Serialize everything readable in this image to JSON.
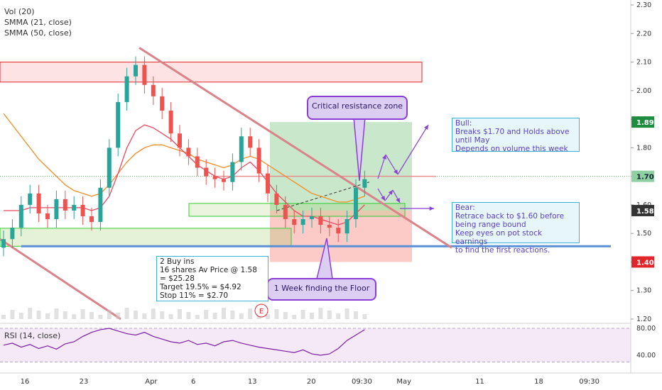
{
  "chart_data": {
    "type": "candlestick",
    "indicators": [
      "Vol (20)",
      "SMMA (21, close)",
      "SMMA (50, close)"
    ],
    "ylim": [
      1.2,
      2.3
    ],
    "y_ticks": [
      "2.30",
      "2.20",
      "2.10",
      "2.00",
      "1.90",
      "1.80",
      "1.70",
      "1.60",
      "1.50",
      "1.40",
      "1.30",
      "1.20"
    ],
    "price_badges": [
      {
        "label": "1.89",
        "value": 1.89,
        "color": "#1e8e3e"
      },
      {
        "label": "1.70",
        "value": 1.7,
        "color": "#8fcfa2"
      },
      {
        "label": "1.58",
        "value": 1.58,
        "color": "#333333"
      },
      {
        "label": "1.40",
        "value": 1.4,
        "color": "#e0262b"
      }
    ],
    "x_ticks": [
      {
        "label": "16",
        "day": 1
      },
      {
        "label": "23",
        "day": 8
      },
      {
        "label": "Apr",
        "day": 16
      },
      {
        "label": "6",
        "day": 21
      },
      {
        "label": "13",
        "day": 28
      },
      {
        "label": "20",
        "day": 35
      },
      {
        "label": "09:30",
        "day": 41
      },
      {
        "label": "May",
        "day": 46
      },
      {
        "label": "11",
        "day": 55
      },
      {
        "label": "18",
        "day": 62
      },
      {
        "label": "09:30",
        "day": 68
      }
    ],
    "close": [
      1.48,
      1.52,
      1.6,
      1.64,
      1.57,
      1.55,
      1.62,
      1.58,
      1.6,
      1.56,
      1.54,
      1.66,
      1.8,
      1.96,
      2.05,
      2.09,
      2.02,
      1.98,
      1.93,
      1.85,
      1.8,
      1.77,
      1.73,
      1.7,
      1.69,
      1.68,
      1.75,
      1.84,
      1.8,
      1.71,
      1.64,
      1.6,
      1.55,
      1.53,
      1.55,
      1.56,
      1.53,
      1.52,
      1.5,
      1.55,
      1.66,
      1.69
    ],
    "smma21": [
      1.58,
      1.58,
      1.58,
      1.59,
      1.59,
      1.59,
      1.59,
      1.59,
      1.59,
      1.59,
      1.58,
      1.59,
      1.63,
      1.71,
      1.8,
      1.86,
      1.88,
      1.87,
      1.85,
      1.83,
      1.8,
      1.77,
      1.74,
      1.72,
      1.7,
      1.69,
      1.7,
      1.73,
      1.75,
      1.72,
      1.68,
      1.64,
      1.61,
      1.58,
      1.56,
      1.56,
      1.55,
      1.54,
      1.53,
      1.54,
      1.57,
      1.6
    ],
    "smma50": [
      1.92,
      1.88,
      1.84,
      1.8,
      1.76,
      1.73,
      1.7,
      1.67,
      1.65,
      1.64,
      1.63,
      1.64,
      1.67,
      1.71,
      1.75,
      1.78,
      1.8,
      1.81,
      1.81,
      1.8,
      1.79,
      1.78,
      1.76,
      1.75,
      1.74,
      1.73,
      1.74,
      1.76,
      1.77,
      1.76,
      1.74,
      1.72,
      1.7,
      1.68,
      1.66,
      1.64,
      1.63,
      1.62,
      1.61,
      1.61,
      1.62,
      1.63
    ],
    "rsi_label": "RSI (14, close)",
    "rsi_ticks": [
      "80.00",
      "40.00"
    ],
    "rsi": [
      55,
      58,
      52,
      56,
      50,
      54,
      49,
      57,
      60,
      68,
      74,
      78,
      80,
      76,
      72,
      70,
      74,
      68,
      64,
      60,
      58,
      62,
      56,
      58,
      54,
      60,
      62,
      58,
      55,
      52,
      50,
      48,
      46,
      44,
      48,
      42,
      40,
      42,
      50,
      62,
      70,
      78
    ],
    "rsi_ylim": [
      20,
      90
    ],
    "zones": {
      "resistance_top": [
        2.1,
        2.03
      ],
      "profit_zone": [
        1.89,
        1.58
      ],
      "loss_zone": [
        1.58,
        1.4
      ],
      "support_line": 1.455,
      "dotted_resistance": 1.7
    },
    "annotations": [
      {
        "name": "critical-resistance",
        "text": "Critical resistance zone"
      },
      {
        "name": "floor",
        "text": "1 Week finding the Floor"
      },
      {
        "name": "earnings-marker",
        "text": "E"
      }
    ],
    "bull_box": [
      "Bull:",
      "Breaks $1.70 and Holds above",
      "until May",
      "Depends on volume this week"
    ],
    "bear_box": [
      "Bear:",
      "Retrace back to $1.60 before",
      "being range bound",
      "Keep eyes on pot stock earnings",
      "to find the first reactions."
    ],
    "buy_box": [
      "2 Buy ins",
      "16 shares Av Price @ 1.58",
      "= $25.28",
      "Target 19.5% = $4.92",
      "Stop 11% = $2.70"
    ]
  }
}
